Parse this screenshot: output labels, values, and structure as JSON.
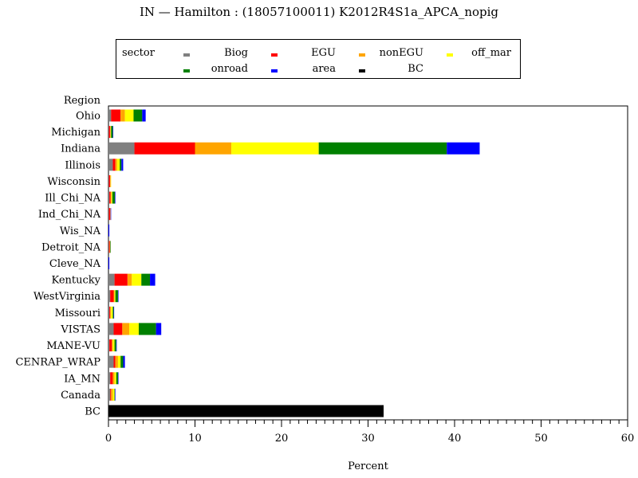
{
  "chart_data": {
    "type": "bar",
    "orientation": "horizontal",
    "stacked": true,
    "title": "IN  —  Hamilton  :  (18057100011)  K2012R4S1a_APCA_nopig",
    "xlabel": "Percent",
    "ylabel": "Region",
    "xlim": [
      0,
      60
    ],
    "x_ticks": [
      0,
      10,
      20,
      30,
      40,
      50,
      60
    ],
    "grid": false,
    "legend": {
      "title": "sector",
      "placement": "top",
      "entries": [
        {
          "name": "Biog",
          "color": "#808080"
        },
        {
          "name": "EGU",
          "color": "#ff0000"
        },
        {
          "name": "nonEGU",
          "color": "#ffa500"
        },
        {
          "name": "off_mar",
          "color": "#ffff00"
        },
        {
          "name": "onroad",
          "color": "#008000"
        },
        {
          "name": "area",
          "color": "#0000ff"
        },
        {
          "name": "BC",
          "color": "#000000"
        }
      ]
    },
    "categories": [
      "Ohio",
      "Michigan",
      "Indiana",
      "Illinois",
      "Wisconsin",
      "Ill_Chi_NA",
      "Ind_Chi_NA",
      "Wis_NA",
      "Detroit_NA",
      "Cleve_NA",
      "Kentucky",
      "WestVirginia",
      "Missouri",
      "VISTAS",
      "MANE-VU",
      "CENRAP_WRAP",
      "IA_MN",
      "Canada",
      "BC"
    ],
    "series": [
      {
        "name": "Biog",
        "color": "#808080",
        "values": [
          0.3,
          0.05,
          3.0,
          0.5,
          0.05,
          0.1,
          0.05,
          0.0,
          0.05,
          0.0,
          0.7,
          0.2,
          0.1,
          0.6,
          0.1,
          0.6,
          0.2,
          0.2,
          0.0
        ]
      },
      {
        "name": "EGU",
        "color": "#ff0000",
        "values": [
          1.1,
          0.15,
          7.0,
          0.3,
          0.15,
          0.15,
          0.15,
          0.0,
          0.1,
          0.0,
          1.5,
          0.4,
          0.1,
          1.0,
          0.3,
          0.2,
          0.3,
          0.1,
          0.0
        ]
      },
      {
        "name": "nonEGU",
        "color": "#ffa500",
        "values": [
          0.5,
          0.05,
          4.2,
          0.2,
          0.05,
          0.1,
          0.05,
          0.0,
          0.05,
          0.0,
          0.5,
          0.1,
          0.1,
          0.8,
          0.1,
          0.3,
          0.2,
          0.2,
          0.0
        ]
      },
      {
        "name": "off_mar",
        "color": "#ffff00",
        "values": [
          1.0,
          0.05,
          10.1,
          0.3,
          0.05,
          0.1,
          0.0,
          0.0,
          0.0,
          0.0,
          1.1,
          0.1,
          0.2,
          1.1,
          0.2,
          0.3,
          0.2,
          0.2,
          0.0
        ]
      },
      {
        "name": "onroad",
        "color": "#008000",
        "values": [
          1.0,
          0.2,
          14.8,
          0.2,
          0.0,
          0.3,
          0.0,
          0.0,
          0.05,
          0.0,
          1.0,
          0.3,
          0.1,
          2.0,
          0.2,
          0.3,
          0.2,
          0.05,
          0.0
        ]
      },
      {
        "name": "area",
        "color": "#0000ff",
        "values": [
          0.4,
          0.05,
          3.8,
          0.2,
          0.0,
          0.05,
          0.05,
          0.1,
          0.0,
          0.1,
          0.6,
          0.05,
          0.05,
          0.6,
          0.05,
          0.2,
          0.05,
          0.05,
          0.0
        ]
      },
      {
        "name": "BC",
        "color": "#000000",
        "values": [
          0,
          0,
          0,
          0,
          0,
          0,
          0,
          0,
          0,
          0,
          0,
          0,
          0,
          0,
          0,
          0,
          0,
          0,
          31.8
        ]
      }
    ]
  }
}
